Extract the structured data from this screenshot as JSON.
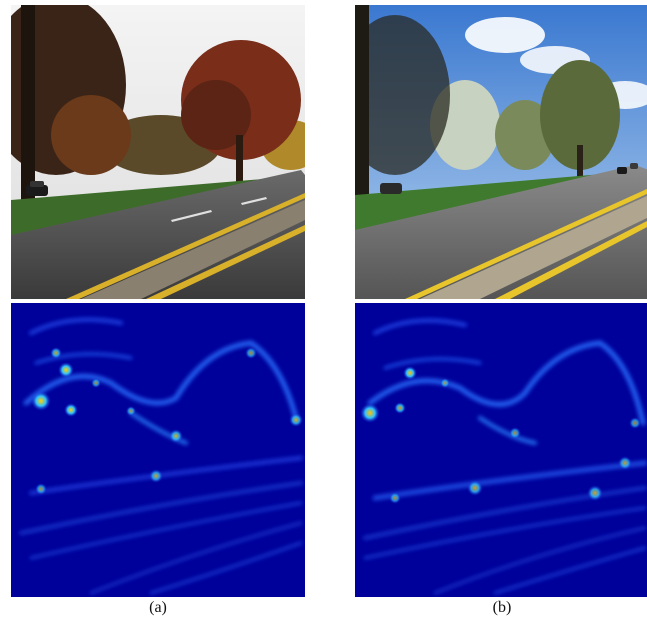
{
  "figure": {
    "panels": [
      {
        "label": "(a)",
        "photo": "autumn-road-scene",
        "heatmap": "blue-jet-saliency-map"
      },
      {
        "label": "(b)",
        "photo": "spring-road-scene",
        "heatmap": "blue-jet-saliency-map"
      }
    ]
  }
}
